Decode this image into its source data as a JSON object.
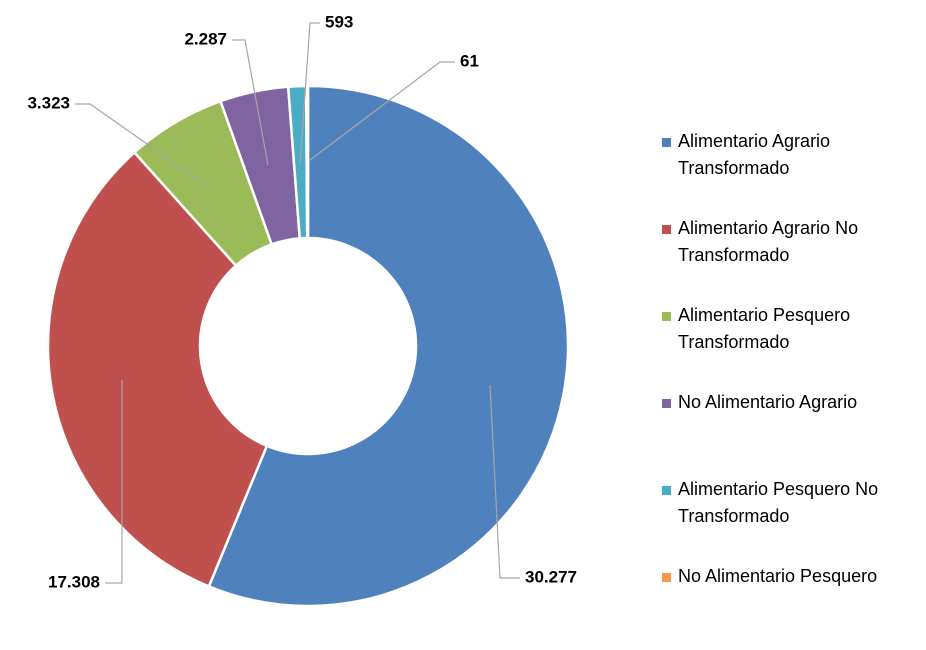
{
  "chart_data": {
    "type": "donut",
    "categories": [
      "Alimentario Agrario Transformado",
      "Alimentario Agrario No Transformado",
      "Alimentario Pesquero Transformado",
      "No Alimentario Agrario",
      "Alimentario Pesquero No Transformado",
      "No Alimentario Pesquero"
    ],
    "values": [
      30277,
      17308,
      3323,
      2287,
      593,
      61
    ],
    "value_labels": [
      "30.277",
      "17.308",
      "3.323",
      "2.287",
      "593",
      "61"
    ],
    "colors": [
      "#4f81bd",
      "#c0504d",
      "#9bbb59",
      "#8064a2",
      "#4bacc6",
      "#f79646"
    ],
    "legend": "right"
  }
}
